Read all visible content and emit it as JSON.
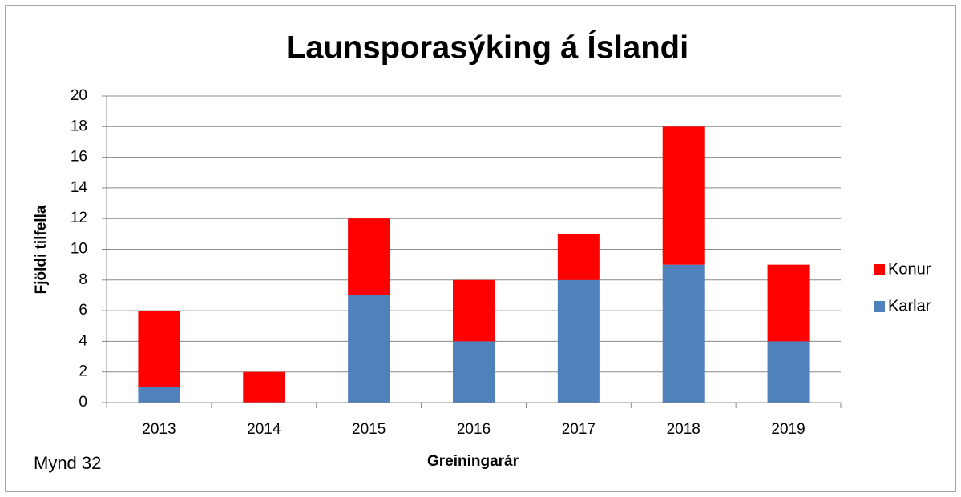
{
  "chart_data": {
    "type": "stacked_bar",
    "title": "Launsporasýking á Íslandi",
    "x_label": "Greiningarár",
    "y_label": "Fjöldi tilfella",
    "annotation": "Mynd 32",
    "categories": [
      "2013",
      "2014",
      "2015",
      "2016",
      "2017",
      "2018",
      "2019"
    ],
    "series": [
      {
        "name": "Karlar",
        "color": "#4f81bd",
        "values": [
          1,
          0,
          7,
          4,
          8,
          9,
          4
        ]
      },
      {
        "name": "Konur",
        "color": "#ff0000",
        "values": [
          5,
          2,
          5,
          4,
          3,
          9,
          5
        ]
      }
    ],
    "ylim": [
      0,
      20
    ],
    "yticks": [
      0,
      2,
      4,
      6,
      8,
      10,
      12,
      14,
      16,
      18,
      20
    ],
    "grid": true,
    "legend": "right"
  }
}
